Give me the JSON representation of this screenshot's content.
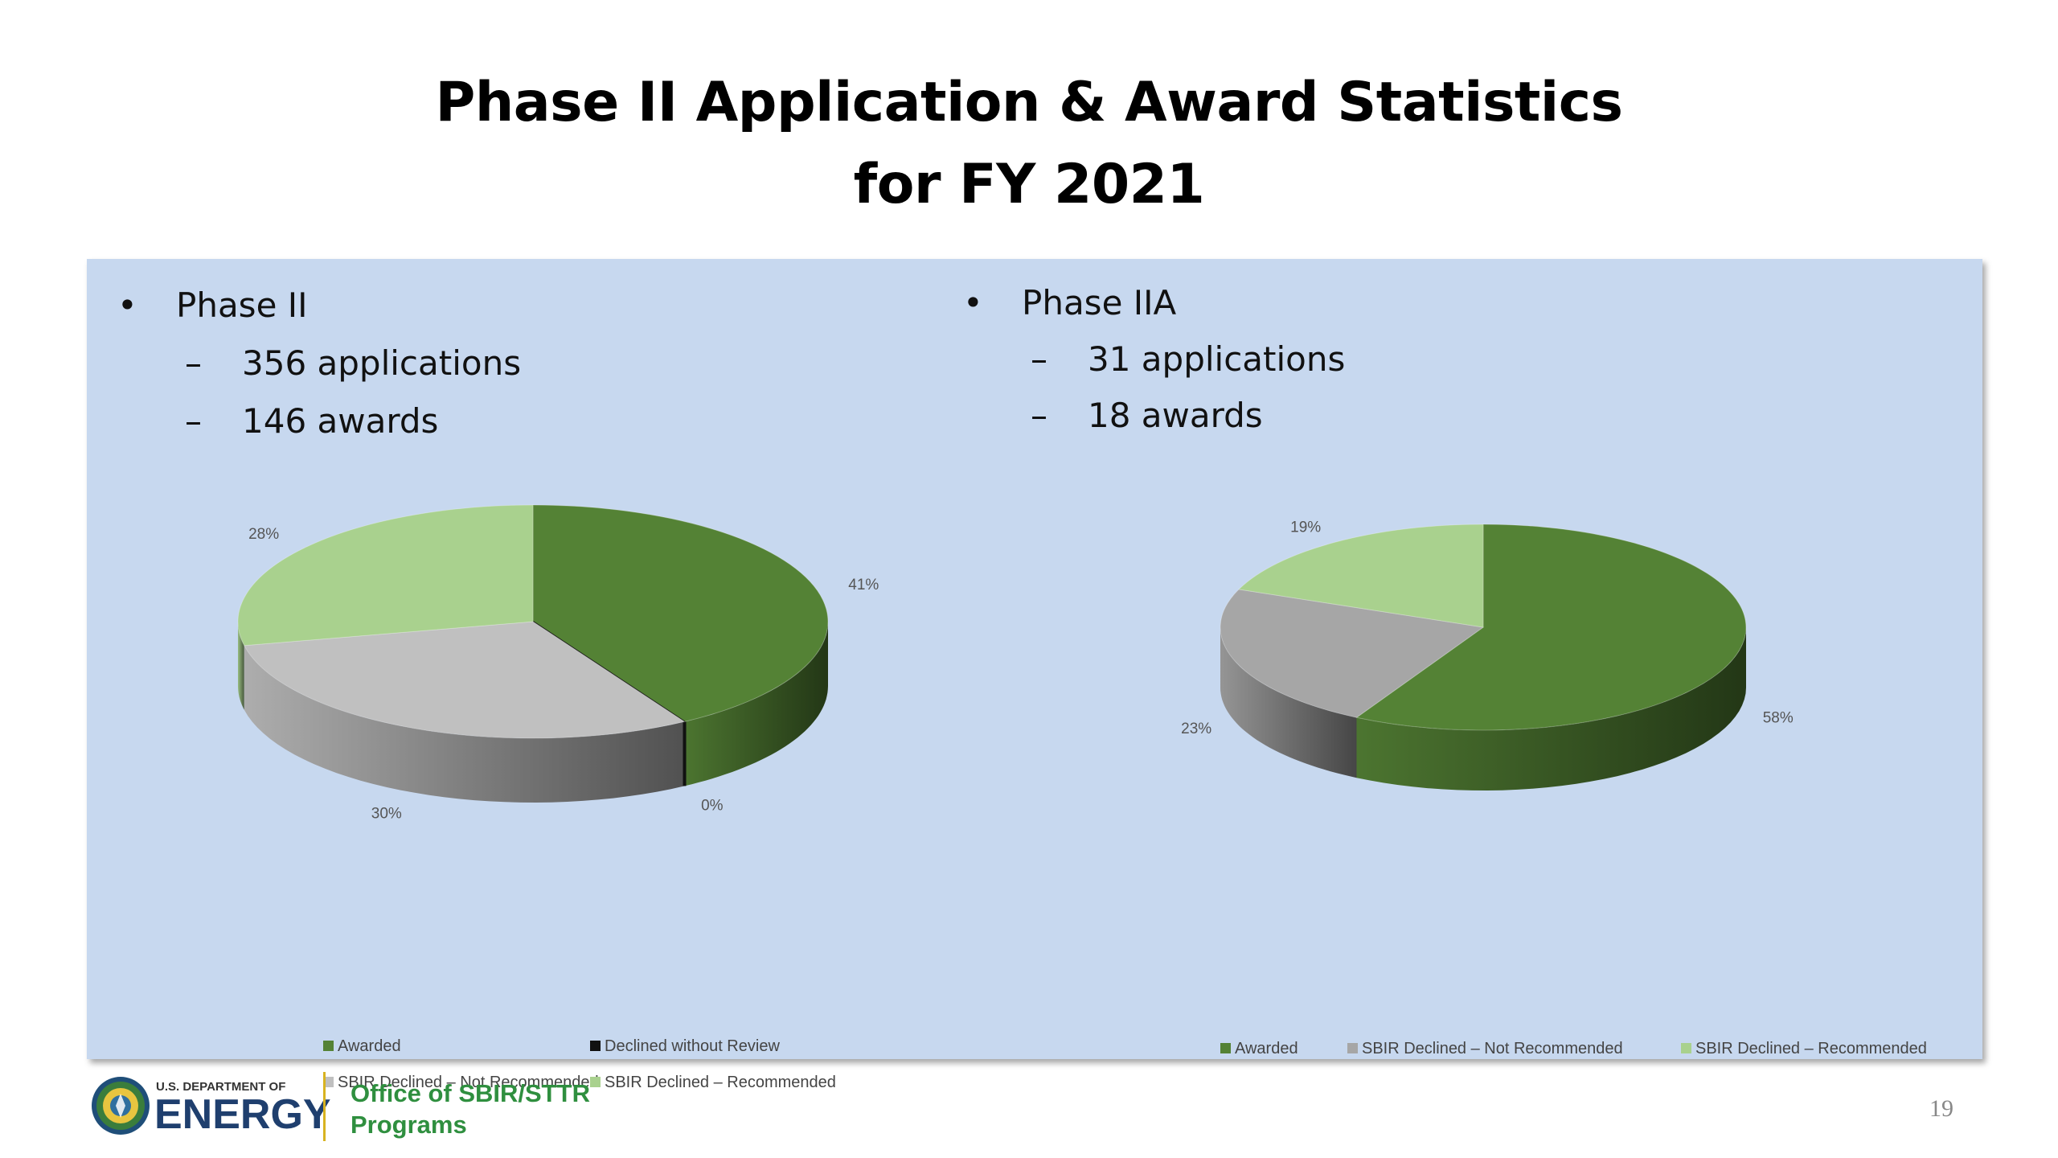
{
  "slide": {
    "title_line1": "Phase II Application & Award Statistics",
    "title_line2": "for FY 2021",
    "page_number": "19"
  },
  "left_panel": {
    "bullet": "•",
    "heading": "Phase II",
    "dash": "–",
    "items": [
      "356 applications",
      "146 awards"
    ]
  },
  "right_panel": {
    "bullet": "•",
    "heading": "Phase IIA",
    "dash": "–",
    "items": [
      "31 applications",
      "18 awards"
    ]
  },
  "chart_data": [
    {
      "type": "pie",
      "title": "",
      "categories": [
        "Awarded",
        "Declined without Review",
        "SBIR Declined – Not Recommended",
        "SBIR Declined – Recommended"
      ],
      "values": [
        41,
        0,
        30,
        28
      ],
      "labels": [
        "41%",
        "0%",
        "30%",
        "28%"
      ],
      "colors": [
        "#548235",
        "#111111",
        "#c0c0c0",
        "#a9d18e"
      ],
      "legend_position": "bottom"
    },
    {
      "type": "pie",
      "title": "",
      "categories": [
        "Awarded",
        "SBIR Declined – Not Recommended",
        "SBIR Declined – Recommended"
      ],
      "values": [
        58,
        23,
        19
      ],
      "labels": [
        "58%",
        "23%",
        "19%"
      ],
      "colors": [
        "#548235",
        "#a6a6a6",
        "#a9d18e"
      ],
      "legend_position": "bottom"
    }
  ],
  "footer": {
    "agency_small": "U.S. DEPARTMENT OF",
    "agency_large": "ENERGY",
    "office_line1": "Office of SBIR/STTR",
    "office_line2": "Programs"
  }
}
